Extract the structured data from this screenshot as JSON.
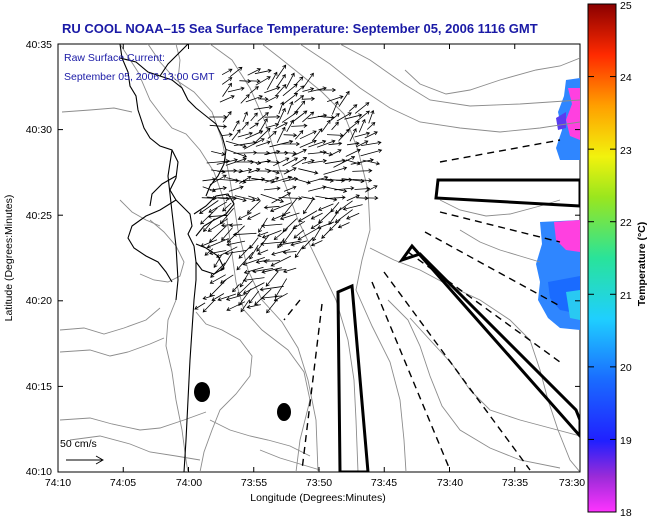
{
  "title": "RU COOL  NOAA–15  Sea Surface Temperature:  September 05, 2006 1116 GMT",
  "legend": {
    "line1": "Raw Surface Current:",
    "line2": "September 05, 2006 13:00 GMT"
  },
  "axes": {
    "xlabel": "Longitude (Degrees:Minutes)",
    "ylabel": "Latitude (Degrees:Minutes)",
    "xticks": [
      "74:10",
      "74:05",
      "74:00",
      "73:55",
      "73:50",
      "73:45",
      "73:40",
      "73:35",
      "73:30"
    ],
    "yticks": [
      "40:10",
      "40:15",
      "40:20",
      "40:25",
      "40:30",
      "40:35"
    ]
  },
  "scale_arrow": {
    "label": "50 cm/s"
  },
  "colorbar": {
    "label": "Temperature (°C)",
    "min": 18,
    "max": 25,
    "ticks": [
      "18",
      "19",
      "20",
      "21",
      "22",
      "23",
      "24",
      "25"
    ]
  },
  "colors": {
    "title": "#1a1aa6",
    "contour": "#8c8c8c",
    "coast": "#000000"
  }
}
